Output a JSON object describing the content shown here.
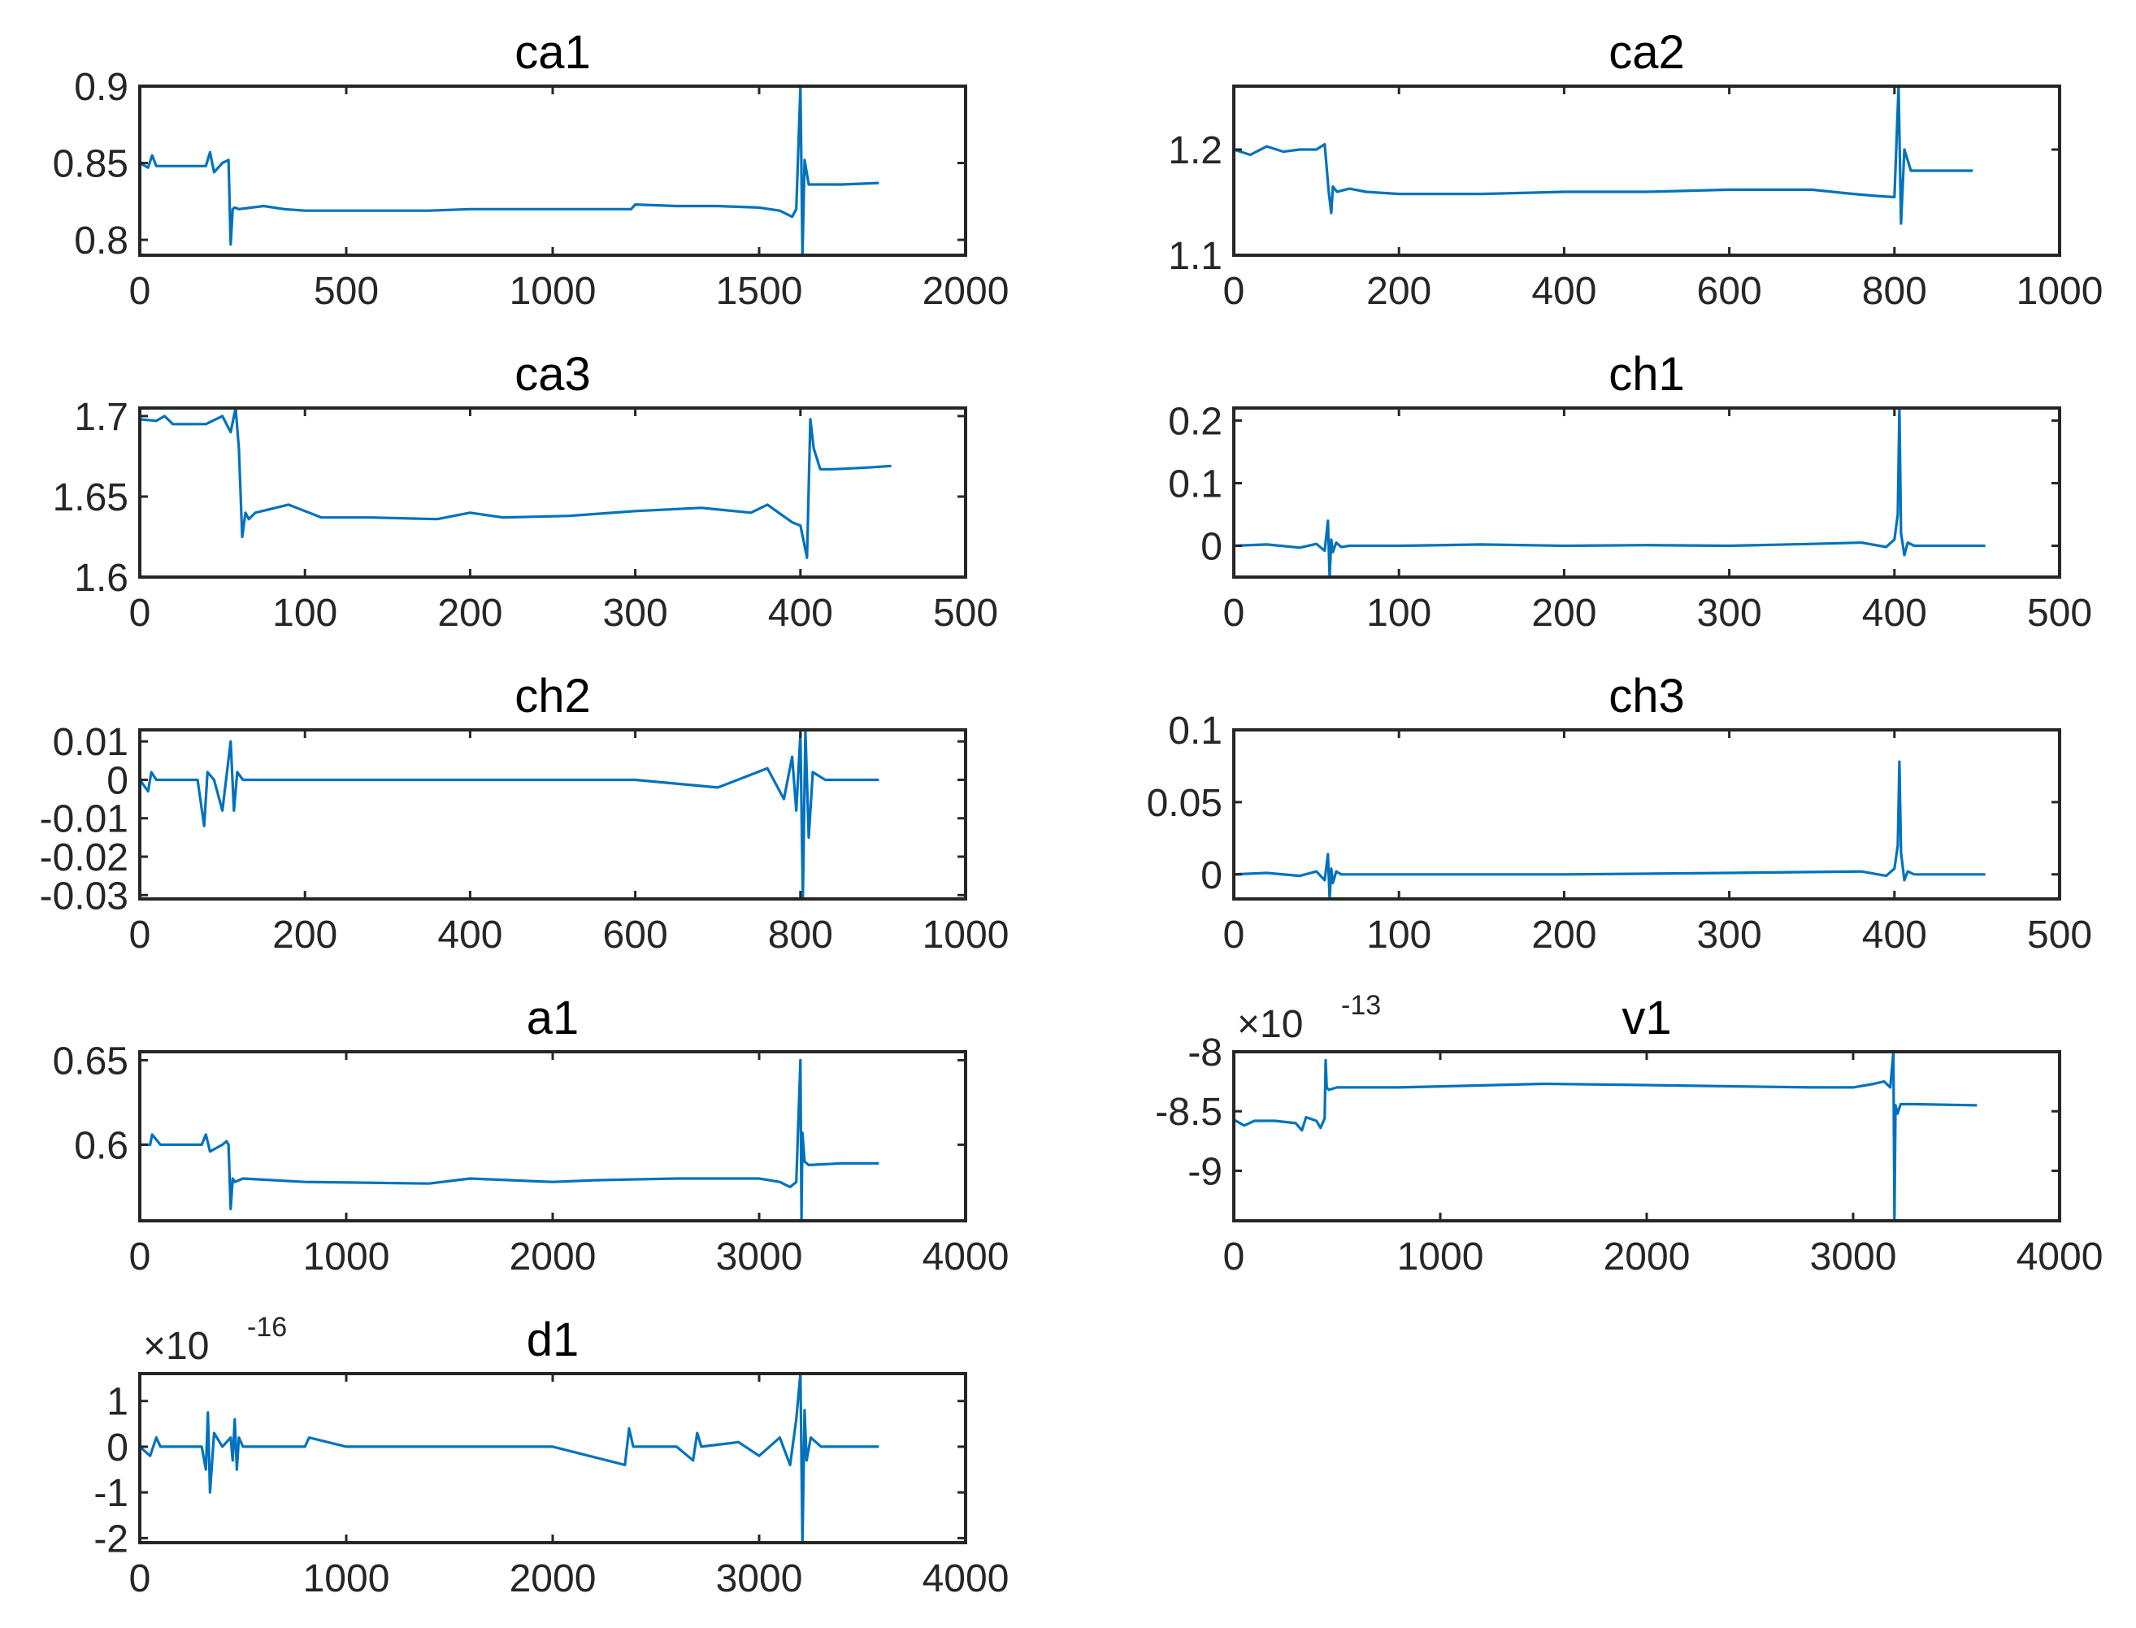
{
  "figure": {
    "background": "#ffffff",
    "line_color": "#0072BD"
  },
  "chart_data": [
    {
      "type": "line",
      "title": "ca1",
      "xlim": [
        0,
        2000
      ],
      "ylim": [
        0.79,
        0.9
      ],
      "xticks": [
        "0",
        "500",
        "1000",
        "1500",
        "2000"
      ],
      "xtick_vals": [
        0,
        500,
        1000,
        1500,
        2000
      ],
      "yticks": [
        "0.8",
        "0.85",
        "0.9"
      ],
      "ytick_vals": [
        0.8,
        0.85,
        0.9
      ],
      "series": [
        {
          "name": "ca1",
          "x": [
            0,
            20,
            30,
            40,
            60,
            160,
            170,
            180,
            200,
            215,
            220,
            225,
            230,
            240,
            300,
            350,
            400,
            700,
            800,
            1000,
            1190,
            1200,
            1300,
            1400,
            1500,
            1550,
            1580,
            1590,
            1600,
            1605,
            1610,
            1620,
            1700,
            1790
          ],
          "y": [
            0.85,
            0.847,
            0.855,
            0.848,
            0.848,
            0.848,
            0.857,
            0.844,
            0.85,
            0.852,
            0.797,
            0.82,
            0.821,
            0.82,
            0.822,
            0.82,
            0.819,
            0.819,
            0.82,
            0.82,
            0.82,
            0.823,
            0.822,
            0.822,
            0.821,
            0.819,
            0.815,
            0.82,
            0.9,
            0.79,
            0.852,
            0.836,
            0.836,
            0.837
          ]
        }
      ]
    },
    {
      "type": "line",
      "title": "ca2",
      "xlim": [
        0,
        1000
      ],
      "ylim": [
        1.1,
        1.26
      ],
      "xticks": [
        "0",
        "200",
        "400",
        "600",
        "800",
        "1000"
      ],
      "xtick_vals": [
        0,
        200,
        400,
        600,
        800,
        1000
      ],
      "yticks": [
        "1.1",
        "1.2"
      ],
      "ytick_vals": [
        1.1,
        1.2
      ],
      "series": [
        {
          "name": "ca2",
          "x": [
            0,
            20,
            40,
            60,
            80,
            100,
            110,
            115,
            118,
            120,
            125,
            140,
            160,
            200,
            300,
            400,
            500,
            600,
            700,
            750,
            780,
            800,
            805,
            808,
            812,
            820,
            850,
            880,
            895
          ],
          "y": [
            1.2,
            1.195,
            1.203,
            1.198,
            1.2,
            1.2,
            1.205,
            1.16,
            1.14,
            1.165,
            1.16,
            1.163,
            1.16,
            1.158,
            1.158,
            1.16,
            1.16,
            1.162,
            1.162,
            1.158,
            1.156,
            1.155,
            1.26,
            1.13,
            1.2,
            1.18,
            1.18,
            1.18,
            1.18
          ]
        }
      ]
    },
    {
      "type": "line",
      "title": "ca3",
      "xlim": [
        0,
        500
      ],
      "ylim": [
        1.6,
        1.705
      ],
      "xticks": [
        "0",
        "100",
        "200",
        "300",
        "400",
        "500"
      ],
      "xtick_vals": [
        0,
        100,
        200,
        300,
        400,
        500
      ],
      "yticks": [
        "1.6",
        "1.65",
        "1.7"
      ],
      "ytick_vals": [
        1.6,
        1.65,
        1.7
      ],
      "series": [
        {
          "name": "ca3",
          "x": [
            0,
            10,
            15,
            20,
            40,
            50,
            55,
            58,
            60,
            62,
            64,
            66,
            70,
            90,
            110,
            140,
            180,
            200,
            220,
            260,
            300,
            340,
            370,
            380,
            395,
            400,
            404,
            406,
            408,
            412,
            420,
            440,
            455
          ],
          "y": [
            1.698,
            1.697,
            1.7,
            1.695,
            1.695,
            1.7,
            1.69,
            1.705,
            1.68,
            1.625,
            1.64,
            1.636,
            1.64,
            1.645,
            1.637,
            1.637,
            1.636,
            1.64,
            1.637,
            1.638,
            1.641,
            1.643,
            1.64,
            1.645,
            1.634,
            1.632,
            1.612,
            1.698,
            1.68,
            1.667,
            1.667,
            1.668,
            1.669
          ]
        }
      ]
    },
    {
      "type": "line",
      "title": "ch1",
      "xlim": [
        0,
        500
      ],
      "ylim": [
        -0.05,
        0.22
      ],
      "xticks": [
        "0",
        "100",
        "200",
        "300",
        "400",
        "500"
      ],
      "xtick_vals": [
        0,
        100,
        200,
        300,
        400,
        500
      ],
      "yticks": [
        "0",
        "0.1",
        "0.2"
      ],
      "ytick_vals": [
        0,
        0.1,
        0.2
      ],
      "series": [
        {
          "name": "ch1",
          "x": [
            0,
            20,
            40,
            50,
            55,
            57,
            58,
            59,
            60,
            62,
            65,
            70,
            100,
            150,
            200,
            250,
            300,
            350,
            380,
            395,
            400,
            402,
            403,
            404,
            406,
            408,
            412,
            420,
            455
          ],
          "y": [
            0,
            0.002,
            -0.003,
            0.003,
            -0.008,
            0.04,
            -0.05,
            0.01,
            -0.01,
            0.005,
            -0.002,
            0,
            0,
            0.002,
            0,
            0.001,
            0,
            0.003,
            0.005,
            -0.002,
            0.01,
            0.05,
            0.22,
            0.02,
            -0.015,
            0.005,
            0,
            0,
            0
          ]
        }
      ]
    },
    {
      "type": "line",
      "title": "ch2",
      "xlim": [
        0,
        1000
      ],
      "ylim": [
        -0.031,
        0.013
      ],
      "xticks": [
        "0",
        "200",
        "400",
        "600",
        "800",
        "1000"
      ],
      "xtick_vals": [
        0,
        200,
        400,
        600,
        800,
        1000
      ],
      "yticks": [
        "0.01",
        "0",
        "-0.01",
        "-0.02",
        "-0.03"
      ],
      "ytick_vals": [
        0.01,
        0,
        -0.01,
        -0.02,
        -0.03
      ],
      "series": [
        {
          "name": "ch2",
          "x": [
            0,
            10,
            14,
            20,
            70,
            78,
            82,
            90,
            100,
            110,
            114,
            118,
            125,
            200,
            400,
            600,
            700,
            760,
            780,
            790,
            795,
            800,
            803,
            806,
            810,
            815,
            830,
            895
          ],
          "y": [
            0,
            -0.003,
            0.002,
            0,
            0,
            -0.012,
            0.002,
            0,
            -0.008,
            0.01,
            -0.008,
            0.002,
            0,
            0,
            0,
            0,
            -0.002,
            0.003,
            -0.005,
            0.006,
            -0.008,
            0.012,
            -0.031,
            0.013,
            -0.015,
            0.002,
            0,
            0
          ]
        }
      ]
    },
    {
      "type": "line",
      "title": "ch3",
      "xlim": [
        0,
        500
      ],
      "ylim": [
        -0.017,
        0.1
      ],
      "xticks": [
        "0",
        "100",
        "200",
        "300",
        "400",
        "500"
      ],
      "xtick_vals": [
        0,
        100,
        200,
        300,
        400,
        500
      ],
      "yticks": [
        "0",
        "0.05",
        "0.1"
      ],
      "ytick_vals": [
        0,
        0.05,
        0.1
      ],
      "series": [
        {
          "name": "ch3",
          "x": [
            0,
            20,
            40,
            50,
            55,
            57,
            58,
            59,
            60,
            62,
            65,
            70,
            100,
            200,
            300,
            380,
            395,
            400,
            402,
            403,
            404,
            406,
            408,
            412,
            420,
            455
          ],
          "y": [
            0,
            0.001,
            -0.001,
            0.002,
            -0.004,
            0.014,
            -0.017,
            0.004,
            -0.006,
            0.002,
            0,
            0,
            0,
            0,
            0.001,
            0.002,
            -0.001,
            0.004,
            0.02,
            0.078,
            0.015,
            -0.004,
            0.002,
            0,
            0,
            0
          ]
        }
      ]
    },
    {
      "type": "line",
      "title": "a1",
      "xlim": [
        0,
        4000
      ],
      "ylim": [
        0.555,
        0.655
      ],
      "xticks": [
        "0",
        "1000",
        "2000",
        "3000",
        "4000"
      ],
      "xtick_vals": [
        0,
        1000,
        2000,
        3000,
        4000
      ],
      "yticks": [
        "0.6",
        "0.65"
      ],
      "ytick_vals": [
        0.6,
        0.65
      ],
      "series": [
        {
          "name": "a1",
          "x": [
            0,
            50,
            60,
            100,
            300,
            320,
            340,
            400,
            420,
            430,
            440,
            450,
            460,
            500,
            800,
            1400,
            1600,
            2000,
            2200,
            2600,
            3000,
            3100,
            3150,
            3180,
            3200,
            3205,
            3210,
            3220,
            3240,
            3400,
            3580
          ],
          "y": [
            0.6,
            0.6,
            0.606,
            0.6,
            0.6,
            0.606,
            0.596,
            0.6,
            0.602,
            0.6,
            0.562,
            0.58,
            0.578,
            0.58,
            0.578,
            0.577,
            0.58,
            0.578,
            0.579,
            0.58,
            0.58,
            0.578,
            0.575,
            0.578,
            0.65,
            0.556,
            0.607,
            0.59,
            0.588,
            0.589,
            0.589
          ]
        }
      ]
    },
    {
      "type": "line",
      "title": "v1",
      "exponent_label": "×10",
      "exponent_power": "-13",
      "xlim": [
        0,
        4000
      ],
      "ylim": [
        -9.42,
        -8.0
      ],
      "xticks": [
        "0",
        "1000",
        "2000",
        "3000",
        "4000"
      ],
      "xtick_vals": [
        0,
        1000,
        2000,
        3000,
        4000
      ],
      "yticks": [
        "-8",
        "-8.5",
        "-9"
      ],
      "ytick_vals": [
        -8.0,
        -8.5,
        -9.0
      ],
      "series": [
        {
          "name": "v1",
          "x": [
            0,
            50,
            100,
            200,
            300,
            330,
            350,
            400,
            420,
            440,
            445,
            450,
            460,
            500,
            800,
            1500,
            2000,
            2400,
            2800,
            3000,
            3100,
            3150,
            3180,
            3195,
            3200,
            3205,
            3215,
            3230,
            3300,
            3600
          ],
          "y": [
            -8.57,
            -8.62,
            -8.58,
            -8.58,
            -8.6,
            -8.66,
            -8.55,
            -8.58,
            -8.64,
            -8.56,
            -8.07,
            -8.3,
            -8.32,
            -8.3,
            -8.3,
            -8.27,
            -8.28,
            -8.29,
            -8.3,
            -8.3,
            -8.27,
            -8.25,
            -8.3,
            -8.0,
            -9.42,
            -8.45,
            -8.52,
            -8.44,
            -8.44,
            -8.45
          ]
        }
      ]
    },
    {
      "type": "line",
      "title": "d1",
      "exponent_label": "×10",
      "exponent_power": "-16",
      "xlim": [
        0,
        4000
      ],
      "ylim": [
        -2.1,
        1.6
      ],
      "xticks": [
        "0",
        "1000",
        "2000",
        "3000",
        "4000"
      ],
      "xtick_vals": [
        0,
        1000,
        2000,
        3000,
        4000
      ],
      "yticks": [
        "1",
        "0",
        "-1",
        "-2"
      ],
      "ytick_vals": [
        1,
        0,
        -1,
        -2
      ],
      "series": [
        {
          "name": "d1",
          "x": [
            0,
            50,
            80,
            100,
            300,
            320,
            330,
            340,
            360,
            400,
            440,
            450,
            460,
            470,
            480,
            500,
            800,
            820,
            1000,
            1500,
            2000,
            2350,
            2370,
            2390,
            2600,
            2680,
            2700,
            2720,
            2900,
            3000,
            3100,
            3150,
            3180,
            3200,
            3210,
            3220,
            3230,
            3250,
            3300,
            3580
          ],
          "y": [
            0,
            -0.2,
            0.2,
            0,
            0,
            -0.5,
            0.75,
            -1.0,
            0.3,
            0,
            0.2,
            -0.3,
            0.6,
            -0.5,
            0.2,
            0,
            0,
            0.2,
            0,
            0,
            0,
            -0.4,
            0.4,
            0,
            0,
            -0.3,
            0.3,
            0,
            0.1,
            -0.2,
            0.2,
            -0.4,
            0.6,
            1.6,
            -2.1,
            0.8,
            -0.3,
            0.2,
            0,
            0
          ]
        }
      ]
    }
  ]
}
